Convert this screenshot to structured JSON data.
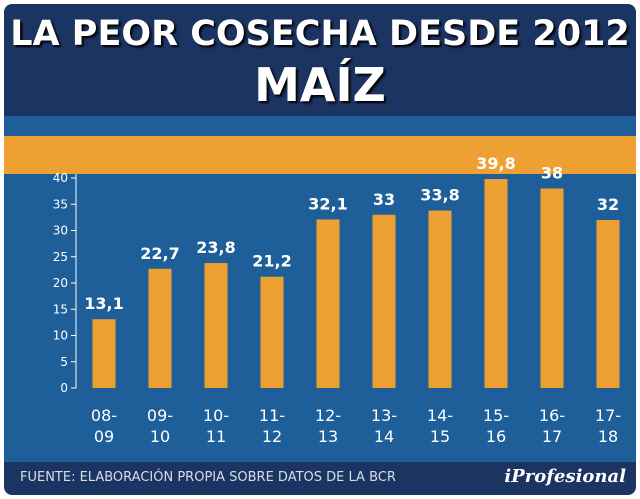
{
  "header": {
    "title": "LA PEOR COSECHA DESDE 2012",
    "subtitle": "MAÍZ"
  },
  "footer": {
    "source": "FUENTE:   ELABORACIÓN PROPIA SOBRE DATOS DE LA BCR",
    "brand": "iProfesional"
  },
  "colors": {
    "header_bg": "#1c3462",
    "plot_bg": "#1e5f9a",
    "bar": "#eea033"
  },
  "chart_data": {
    "type": "bar",
    "title": "LA PEOR COSECHA DESDE 2012 — MAÍZ",
    "categories": [
      [
        "08-",
        "09"
      ],
      [
        "09-",
        "10"
      ],
      [
        "10-",
        "11"
      ],
      [
        "11-",
        "12"
      ],
      [
        "12-",
        "13"
      ],
      [
        "13-",
        "14"
      ],
      [
        "14-",
        "15"
      ],
      [
        "15-",
        "16"
      ],
      [
        "16-",
        "17"
      ],
      [
        "17-",
        "18"
      ]
    ],
    "values": [
      13.1,
      22.7,
      23.8,
      21.2,
      32.1,
      33,
      33.8,
      39.8,
      38,
      32
    ],
    "value_labels": [
      "13,1",
      "22,7",
      "23,8",
      "21,2",
      "32,1",
      "33",
      "33,8",
      "39,8",
      "38",
      "32"
    ],
    "yticks": [
      "0",
      "5",
      "10",
      "15",
      "20",
      "25",
      "30",
      "35",
      "40"
    ],
    "ylim": [
      0,
      40
    ],
    "xlabel": "",
    "ylabel": ""
  }
}
